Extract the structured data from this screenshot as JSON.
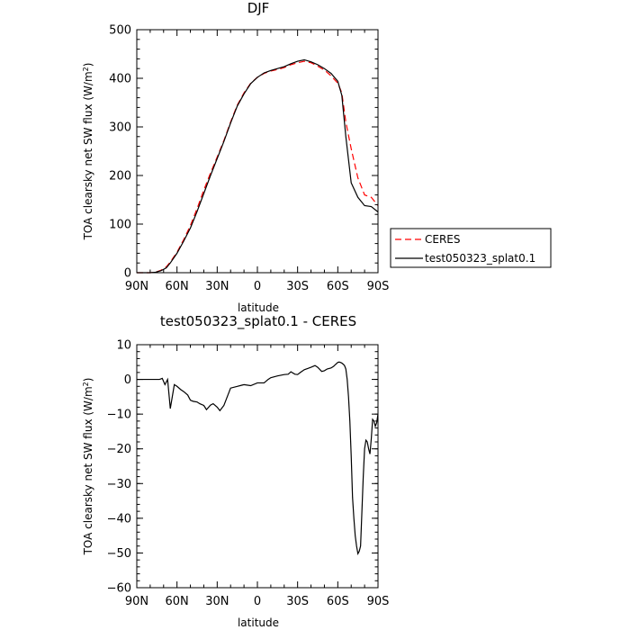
{
  "chart_data": [
    {
      "type": "line",
      "title": "DJF",
      "xlabel": "latitude",
      "ylabel": "TOA clearsky net SW flux (W/m²)",
      "ylabel_main": "TOA clearsky net SW flux (W/m",
      "ylabel_sup": "2",
      "ylabel_end": ")",
      "xlim": [
        -90,
        90
      ],
      "ylim": [
        0,
        500
      ],
      "x_ticks": [
        -90,
        -60,
        -30,
        0,
        30,
        60,
        90
      ],
      "x_tick_labels": [
        "90N",
        "60N",
        "30N",
        "0",
        "30S",
        "60S",
        "90S"
      ],
      "y_ticks": [
        0,
        100,
        200,
        300,
        400,
        500
      ],
      "y_tick_labels": [
        "0",
        "100",
        "200",
        "300",
        "400",
        "500"
      ],
      "legend_position": "right",
      "series": [
        {
          "name": "CERES",
          "color": "#ff0000",
          "dash": "dashed",
          "x": [
            -90,
            -80,
            -76,
            -72,
            -68,
            -65,
            -60,
            -55,
            -50,
            -45,
            -40,
            -35,
            -30,
            -25,
            -20,
            -15,
            -10,
            -5,
            0,
            5,
            10,
            15,
            20,
            25,
            30,
            35,
            40,
            45,
            50,
            55,
            60,
            63,
            66,
            70,
            75,
            80,
            85,
            90
          ],
          "y": [
            0,
            0,
            1,
            5,
            12,
            22,
            42,
            68,
            97,
            132,
            170,
            205,
            238,
            272,
            310,
            345,
            370,
            390,
            402,
            410,
            415,
            418,
            422,
            428,
            432,
            435,
            432,
            425,
            417,
            405,
            390,
            370,
            310,
            255,
            195,
            160,
            155,
            138
          ]
        },
        {
          "name": "test050323_splat0.1",
          "color": "#000000",
          "dash": "solid",
          "x": [
            -90,
            -80,
            -76,
            -72,
            -68,
            -65,
            -60,
            -55,
            -50,
            -45,
            -40,
            -35,
            -30,
            -25,
            -20,
            -15,
            -10,
            -5,
            0,
            5,
            10,
            15,
            20,
            25,
            30,
            35,
            40,
            45,
            50,
            55,
            60,
            63,
            66,
            70,
            75,
            80,
            85,
            90
          ],
          "y": [
            0,
            0,
            1,
            4,
            10,
            20,
            40,
            65,
            92,
            126,
            163,
            200,
            235,
            270,
            308,
            343,
            368,
            389,
            402,
            411,
            416,
            420,
            424,
            430,
            435,
            438,
            434,
            428,
            420,
            410,
            394,
            365,
            280,
            185,
            155,
            138,
            136,
            125
          ]
        }
      ]
    },
    {
      "type": "line",
      "title": "test050323_splat0.1 - CERES",
      "xlabel": "latitude",
      "ylabel": "TOA clearsky net SW flux (W/m²)",
      "ylabel_main": "TOA clearsky net SW flux (W/m",
      "ylabel_sup": "2",
      "ylabel_end": ")",
      "xlim": [
        -90,
        90
      ],
      "ylim": [
        -60,
        10
      ],
      "x_ticks": [
        -90,
        -60,
        -30,
        0,
        30,
        60,
        90
      ],
      "x_tick_labels": [
        "90N",
        "60N",
        "30N",
        "0",
        "30S",
        "60S",
        "90S"
      ],
      "y_ticks": [
        -60,
        -50,
        -40,
        -30,
        -20,
        -10,
        0,
        10
      ],
      "y_tick_labels": [
        "−60",
        "−50",
        "−40",
        "−30",
        "−20",
        "−10",
        "0",
        "10"
      ],
      "series": [
        {
          "color": "#000000",
          "dash": "solid",
          "x": [
            -90,
            -85,
            -80,
            -75,
            -73,
            -71,
            -69,
            -67,
            -65,
            -62,
            -60,
            -57,
            -55,
            -52,
            -50,
            -48,
            -45,
            -43,
            -40,
            -38,
            -35,
            -33,
            -30,
            -28,
            -25,
            -20,
            -15,
            -12,
            -10,
            -5,
            0,
            2,
            5,
            8,
            10,
            15,
            20,
            23,
            25,
            28,
            30,
            32,
            35,
            38,
            40,
            43,
            45,
            48,
            50,
            52,
            55,
            57,
            58,
            60,
            61,
            62,
            63,
            64,
            65,
            66,
            67,
            68,
            69,
            70,
            71,
            72,
            73,
            74,
            75,
            76,
            77,
            78,
            79,
            80,
            81,
            82,
            83,
            84,
            85,
            86,
            87,
            88,
            89,
            90
          ],
          "y": [
            0,
            0,
            0,
            0,
            0,
            0.3,
            -1.5,
            0,
            -8.4,
            -1.5,
            -2,
            -3,
            -3.5,
            -4.5,
            -6,
            -6.3,
            -6.5,
            -7,
            -7.5,
            -8.7,
            -7.4,
            -7,
            -8,
            -9,
            -7.5,
            -2.5,
            -2,
            -1.7,
            -1.5,
            -1.8,
            -1,
            -1,
            -1,
            0,
            0.5,
            1,
            1.4,
            1.5,
            2.2,
            1.5,
            1.4,
            2,
            2.8,
            3.2,
            3.5,
            4,
            3.5,
            2.3,
            2.5,
            3,
            3.3,
            3.8,
            4.2,
            4.9,
            5,
            4.9,
            4.7,
            4.4,
            4,
            3,
            0,
            -5,
            -12,
            -22,
            -34,
            -40,
            -45,
            -48,
            -50.2,
            -49.5,
            -48,
            -38,
            -28,
            -20,
            -17.5,
            -18,
            -20,
            -21.5,
            -17,
            -11.5,
            -12,
            -13.5,
            -12.5,
            -10
          ]
        }
      ]
    }
  ]
}
